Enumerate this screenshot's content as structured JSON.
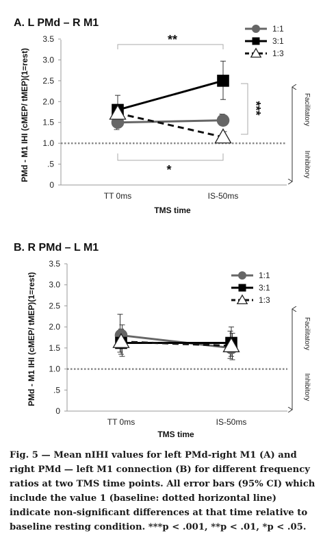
{
  "chart_data": [
    {
      "type": "line",
      "title": "A. L PMd – R M1",
      "ylabel": "PMd - M1 IHI (cMEP/ tMEP)(1=rest)",
      "xlabel": "TMS time",
      "categories": [
        "TT 0ms",
        "IS-50ms"
      ],
      "ylim": [
        0,
        3.5
      ],
      "yticks": [
        "0",
        ".5",
        "1.0",
        "1.5",
        "2.0",
        "2.5",
        "3.0",
        "3.5"
      ],
      "baseline": 1.0,
      "legend_position": "top-right",
      "series": [
        {
          "name": "1:1",
          "marker": "circle",
          "color": "#666666",
          "values": [
            1.5,
            1.55
          ],
          "ci_low": [
            1.33,
            1.43
          ],
          "ci_high": [
            1.65,
            1.7
          ]
        },
        {
          "name": "3:1",
          "marker": "square",
          "color": "#000000",
          "values": [
            1.8,
            2.5
          ],
          "ci_low": [
            1.62,
            2.05
          ],
          "ci_high": [
            2.15,
            2.97
          ]
        },
        {
          "name": "1:3",
          "marker": "triangle",
          "color": "#111111",
          "values": [
            1.72,
            1.15
          ],
          "ci_low": [
            1.55,
            1.02
          ],
          "ci_high": [
            1.88,
            1.28
          ]
        }
      ],
      "annotations": [
        {
          "text": "**",
          "between": "3:1 vs 1:1 at IS-50ms over time"
        },
        {
          "text": "*",
          "between": "baseline bracket"
        },
        {
          "text": "***",
          "between": "3:1 vs 1:3 at IS-50ms"
        }
      ],
      "side_labels": [
        "Facilitatory",
        "Inhibitory"
      ]
    },
    {
      "type": "line",
      "title": "B. R PMd – L M1",
      "ylabel": "PMd - M1 IHI (cMEP/ tMEP)(1=rest)",
      "xlabel": "TMS time",
      "categories": [
        "TT 0ms",
        "IS-50ms"
      ],
      "ylim": [
        0,
        3.5
      ],
      "yticks": [
        "0",
        ".5",
        "1.0",
        "1.5",
        "2.0",
        "2.5",
        "3.0",
        "3.5"
      ],
      "baseline": 1.0,
      "legend_position": "top-right",
      "series": [
        {
          "name": "1:1",
          "marker": "circle",
          "color": "#666666",
          "values": [
            1.8,
            1.5
          ],
          "ci_low": [
            1.4,
            1.25
          ],
          "ci_high": [
            2.3,
            1.9
          ]
        },
        {
          "name": "3:1",
          "marker": "square",
          "color": "#000000",
          "values": [
            1.62,
            1.62
          ],
          "ci_low": [
            1.35,
            1.3
          ],
          "ci_high": [
            1.95,
            2.0
          ]
        },
        {
          "name": "1:3",
          "marker": "triangle",
          "color": "#111111",
          "values": [
            1.65,
            1.55
          ],
          "ci_low": [
            1.3,
            1.22
          ],
          "ci_high": [
            2.05,
            1.85
          ]
        }
      ],
      "side_labels": [
        "Facilitatory",
        "Inhibitory"
      ]
    }
  ],
  "caption": {
    "text": "Fig. 5 — Mean nIHI values for left PMd-right M1 (A) and right PMd — left M1 connection (B) for different frequency ratios at two TMS time points. All error bars (95% CI) which include the value 1 (baseline: dotted horizontal line) indicate non-significant differences at that time relative to baseline resting condition. ***p < .001, **p < .01, *p < .05."
  }
}
